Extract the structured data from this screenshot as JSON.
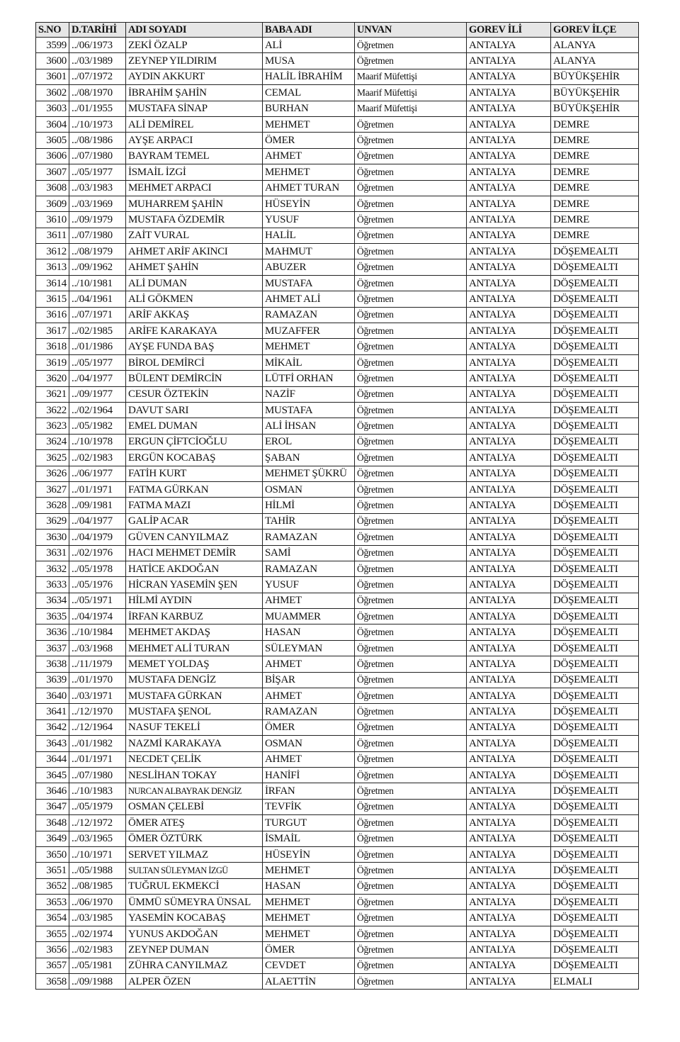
{
  "table": {
    "headers": [
      "S.NO",
      "D.TARİHİ",
      "ADI SOYADI",
      "BABA ADI",
      "UNVAN",
      "GOREV İLİ",
      "GOREV İLÇE"
    ],
    "rows": [
      [
        "3599",
        "../06/1973",
        "ZEKİ ÖZALP",
        "ALİ",
        "Öğretmen",
        "ANTALYA",
        "ALANYA"
      ],
      [
        "3600",
        "../03/1989",
        "ZEYNEP YILDIRIM",
        "MUSA",
        "Öğretmen",
        "ANTALYA",
        "ALANYA"
      ],
      [
        "3601",
        "../07/1972",
        "AYDIN AKKURT",
        "HALİL İBRAHİM",
        "Maarif Müfettişi",
        "ANTALYA",
        "BÜYÜKŞEHİR"
      ],
      [
        "3602",
        "../08/1970",
        "İBRAHİM ŞAHİN",
        "CEMAL",
        "Maarif Müfettişi",
        "ANTALYA",
        "BÜYÜKŞEHİR"
      ],
      [
        "3603",
        "../01/1955",
        "MUSTAFA SİNAP",
        "BURHAN",
        "Maarif Müfettişi",
        "ANTALYA",
        "BÜYÜKŞEHİR"
      ],
      [
        "3604",
        "../10/1973",
        "ALİ DEMİREL",
        "MEHMET",
        "Öğretmen",
        "ANTALYA",
        "DEMRE"
      ],
      [
        "3605",
        "../08/1986",
        "AYŞE ARPACI",
        "ÖMER",
        "Öğretmen",
        "ANTALYA",
        "DEMRE"
      ],
      [
        "3606",
        "../07/1980",
        "BAYRAM TEMEL",
        "AHMET",
        "Öğretmen",
        "ANTALYA",
        "DEMRE"
      ],
      [
        "3607",
        "../05/1977",
        "İSMAİL İZGİ",
        "MEHMET",
        "Öğretmen",
        "ANTALYA",
        "DEMRE"
      ],
      [
        "3608",
        "../03/1983",
        "MEHMET ARPACI",
        "AHMET TURAN",
        "Öğretmen",
        "ANTALYA",
        "DEMRE"
      ],
      [
        "3609",
        "../03/1969",
        "MUHARREM ŞAHİN",
        "HÜSEYİN",
        "Öğretmen",
        "ANTALYA",
        "DEMRE"
      ],
      [
        "3610",
        "../09/1979",
        "MUSTAFA ÖZDEMİR",
        "YUSUF",
        "Öğretmen",
        "ANTALYA",
        "DEMRE"
      ],
      [
        "3611",
        "../07/1980",
        "ZAİT VURAL",
        "HALİL",
        "Öğretmen",
        "ANTALYA",
        "DEMRE"
      ],
      [
        "3612",
        "../08/1979",
        "AHMET ARİF AKINCI",
        "MAHMUT",
        "Öğretmen",
        "ANTALYA",
        "DÖŞEMEALTI"
      ],
      [
        "3613",
        "../09/1962",
        "AHMET ŞAHİN",
        "ABUZER",
        "Öğretmen",
        "ANTALYA",
        "DÖŞEMEALTI"
      ],
      [
        "3614",
        "../10/1981",
        "ALİ DUMAN",
        "MUSTAFA",
        "Öğretmen",
        "ANTALYA",
        "DÖŞEMEALTI"
      ],
      [
        "3615",
        "../04/1961",
        "ALİ GÖKMEN",
        "AHMET ALİ",
        "Öğretmen",
        "ANTALYA",
        "DÖŞEMEALTI"
      ],
      [
        "3616",
        "../07/1971",
        "ARİF AKKAŞ",
        "RAMAZAN",
        "Öğretmen",
        "ANTALYA",
        "DÖŞEMEALTI"
      ],
      [
        "3617",
        "../02/1985",
        "ARİFE KARAKAYA",
        "MUZAFFER",
        "Öğretmen",
        "ANTALYA",
        "DÖŞEMEALTI"
      ],
      [
        "3618",
        "../01/1986",
        "AYŞE FUNDA BAŞ",
        "MEHMET",
        "Öğretmen",
        "ANTALYA",
        "DÖŞEMEALTI"
      ],
      [
        "3619",
        "../05/1977",
        "BİROL DEMİRCİ",
        "MİKAİL",
        "Öğretmen",
        "ANTALYA",
        "DÖŞEMEALTI"
      ],
      [
        "3620",
        "../04/1977",
        "BÜLENT DEMİRCİN",
        "LÜTFİ ORHAN",
        "Öğretmen",
        "ANTALYA",
        "DÖŞEMEALTI"
      ],
      [
        "3621",
        "../09/1977",
        "CESUR ÖZTEKİN",
        "NAZİF",
        "Öğretmen",
        "ANTALYA",
        "DÖŞEMEALTI"
      ],
      [
        "3622",
        "../02/1964",
        "DAVUT SARI",
        "MUSTAFA",
        "Öğretmen",
        "ANTALYA",
        "DÖŞEMEALTI"
      ],
      [
        "3623",
        "../05/1982",
        "EMEL DUMAN",
        "ALİ İHSAN",
        "Öğretmen",
        "ANTALYA",
        "DÖŞEMEALTI"
      ],
      [
        "3624",
        "../10/1978",
        "ERGUN ÇİFTCİOĞLU",
        "EROL",
        "Öğretmen",
        "ANTALYA",
        "DÖŞEMEALTI"
      ],
      [
        "3625",
        "../02/1983",
        "ERGÜN KOCABAŞ",
        "ŞABAN",
        "Öğretmen",
        "ANTALYA",
        "DÖŞEMEALTI"
      ],
      [
        "3626",
        "../06/1977",
        "FATİH KURT",
        "MEHMET ŞÜKRÜ",
        "Öğretmen",
        "ANTALYA",
        "DÖŞEMEALTI"
      ],
      [
        "3627",
        "../01/1971",
        "FATMA GÜRKAN",
        "OSMAN",
        "Öğretmen",
        "ANTALYA",
        "DÖŞEMEALTI"
      ],
      [
        "3628",
        "../09/1981",
        "FATMA MAZI",
        "HİLMİ",
        "Öğretmen",
        "ANTALYA",
        "DÖŞEMEALTI"
      ],
      [
        "3629",
        "../04/1977",
        "GALİP ACAR",
        "TAHİR",
        "Öğretmen",
        "ANTALYA",
        "DÖŞEMEALTI"
      ],
      [
        "3630",
        "../04/1979",
        "GÜVEN CANYILMAZ",
        "RAMAZAN",
        "Öğretmen",
        "ANTALYA",
        "DÖŞEMEALTI"
      ],
      [
        "3631",
        "../02/1976",
        "HACI MEHMET DEMİR",
        "SAMİ",
        "Öğretmen",
        "ANTALYA",
        "DÖŞEMEALTI"
      ],
      [
        "3632",
        "../05/1978",
        "HATİCE AKDOĞAN",
        "RAMAZAN",
        "Öğretmen",
        "ANTALYA",
        "DÖŞEMEALTI"
      ],
      [
        "3633",
        "../05/1976",
        "HİCRAN YASEMİN ŞEN",
        "YUSUF",
        "Öğretmen",
        "ANTALYA",
        "DÖŞEMEALTI"
      ],
      [
        "3634",
        "../05/1971",
        "HİLMİ AYDIN",
        "AHMET",
        "Öğretmen",
        "ANTALYA",
        "DÖŞEMEALTI"
      ],
      [
        "3635",
        "../04/1974",
        "İRFAN KARBUZ",
        "MUAMMER",
        "Öğretmen",
        "ANTALYA",
        "DÖŞEMEALTI"
      ],
      [
        "3636",
        "../10/1984",
        "MEHMET AKDAŞ",
        "HASAN",
        "Öğretmen",
        "ANTALYA",
        "DÖŞEMEALTI"
      ],
      [
        "3637",
        "../03/1968",
        "MEHMET ALİ TURAN",
        "SÜLEYMAN",
        "Öğretmen",
        "ANTALYA",
        "DÖŞEMEALTI"
      ],
      [
        "3638",
        "../11/1979",
        "MEMET YOLDAŞ",
        "AHMET",
        "Öğretmen",
        "ANTALYA",
        "DÖŞEMEALTI"
      ],
      [
        "3639",
        "../01/1970",
        "MUSTAFA DENGİZ",
        "BİŞAR",
        "Öğretmen",
        "ANTALYA",
        "DÖŞEMEALTI"
      ],
      [
        "3640",
        "../03/1971",
        "MUSTAFA GÜRKAN",
        "AHMET",
        "Öğretmen",
        "ANTALYA",
        "DÖŞEMEALTI"
      ],
      [
        "3641",
        "../12/1970",
        "MUSTAFA ŞENOL",
        "RAMAZAN",
        "Öğretmen",
        "ANTALYA",
        "DÖŞEMEALTI"
      ],
      [
        "3642",
        "../12/1964",
        "NASUF TEKELİ",
        "ÖMER",
        "Öğretmen",
        "ANTALYA",
        "DÖŞEMEALTI"
      ],
      [
        "3643",
        "../01/1982",
        "NAZMİ KARAKAYA",
        "OSMAN",
        "Öğretmen",
        "ANTALYA",
        "DÖŞEMEALTI"
      ],
      [
        "3644",
        "../01/1971",
        "NECDET ÇELİK",
        "AHMET",
        "Öğretmen",
        "ANTALYA",
        "DÖŞEMEALTI"
      ],
      [
        "3645",
        "../07/1980",
        "NESLİHAN TOKAY",
        "HANİFİ",
        "Öğretmen",
        "ANTALYA",
        "DÖŞEMEALTI"
      ],
      [
        "3646",
        "../10/1983",
        "NURCAN ALBAYRAK DENGİZ",
        "İRFAN",
        "Öğretmen",
        "ANTALYA",
        "DÖŞEMEALTI"
      ],
      [
        "3647",
        "../05/1979",
        "OSMAN ÇELEBİ",
        "TEVFİK",
        "Öğretmen",
        "ANTALYA",
        "DÖŞEMEALTI"
      ],
      [
        "3648",
        "../12/1972",
        "ÖMER ATEŞ",
        "TURGUT",
        "Öğretmen",
        "ANTALYA",
        "DÖŞEMEALTI"
      ],
      [
        "3649",
        "../03/1965",
        "ÖMER ÖZTÜRK",
        "İSMAİL",
        "Öğretmen",
        "ANTALYA",
        "DÖŞEMEALTI"
      ],
      [
        "3650",
        "../10/1971",
        "SERVET YILMAZ",
        "HÜSEYİN",
        "Öğretmen",
        "ANTALYA",
        "DÖŞEMEALTI"
      ],
      [
        "3651",
        "../05/1988",
        "SULTAN SÜLEYMAN İZGÜ",
        "MEHMET",
        "Öğretmen",
        "ANTALYA",
        "DÖŞEMEALTI"
      ],
      [
        "3652",
        "../08/1985",
        "TUĞRUL EKMEKCİ",
        "HASAN",
        "Öğretmen",
        "ANTALYA",
        "DÖŞEMEALTI"
      ],
      [
        "3653",
        "../06/1970",
        "ÜMMÜ SÜMEYRA ÜNSAL",
        "MEHMET",
        "Öğretmen",
        "ANTALYA",
        "DÖŞEMEALTI"
      ],
      [
        "3654",
        "../03/1985",
        "YASEMİN KOCABAŞ",
        "MEHMET",
        "Öğretmen",
        "ANTALYA",
        "DÖŞEMEALTI"
      ],
      [
        "3655",
        "../02/1974",
        "YUNUS AKDOĞAN",
        "MEHMET",
        "Öğretmen",
        "ANTALYA",
        "DÖŞEMEALTI"
      ],
      [
        "3656",
        "../02/1983",
        "ZEYNEP DUMAN",
        "ÖMER",
        "Öğretmen",
        "ANTALYA",
        "DÖŞEMEALTI"
      ],
      [
        "3657",
        "../05/1981",
        "ZÜHRA CANYILMAZ",
        "CEVDET",
        "Öğretmen",
        "ANTALYA",
        "DÖŞEMEALTI"
      ],
      [
        "3658",
        "../09/1988",
        "ALPER ÖZEN",
        "ALAETTİN",
        "Öğretmen",
        "ANTALYA",
        "ELMALI"
      ]
    ]
  }
}
